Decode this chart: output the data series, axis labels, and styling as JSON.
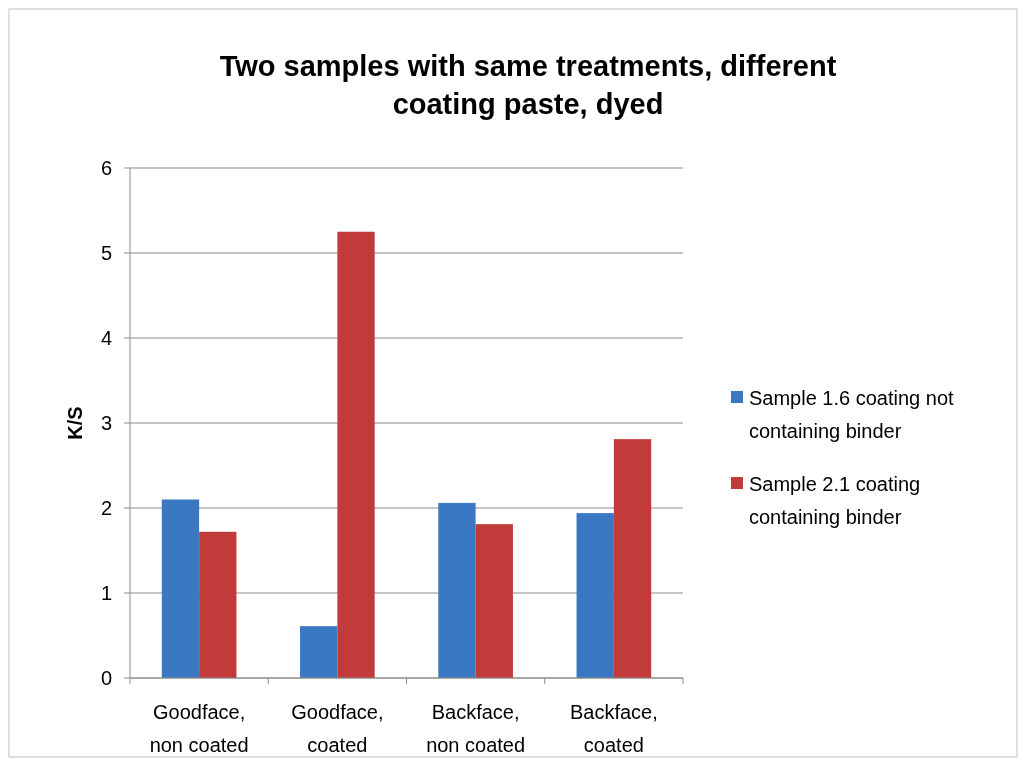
{
  "chart_data": {
    "type": "bar",
    "title": "Two samples with same treatments, different coating paste, dyed",
    "ylabel": "K/S",
    "categories": [
      "Goodface, non coated",
      "Goodface, coated",
      "Backface, non coated",
      "Backface, coated"
    ],
    "series": [
      {
        "name": "Sample 1.6 coating not containing binder",
        "color": "#3b78c4",
        "values": [
          2.1,
          0.61,
          2.06,
          1.94
        ]
      },
      {
        "name": "Sample 2.1 coating containing binder",
        "color": "#c23b3b",
        "values": [
          1.72,
          5.25,
          1.81,
          2.81
        ]
      }
    ],
    "ylim": [
      0,
      6
    ],
    "yticks": [
      0,
      1,
      2,
      3,
      4,
      5,
      6
    ],
    "grid": "y",
    "legend": "right"
  }
}
